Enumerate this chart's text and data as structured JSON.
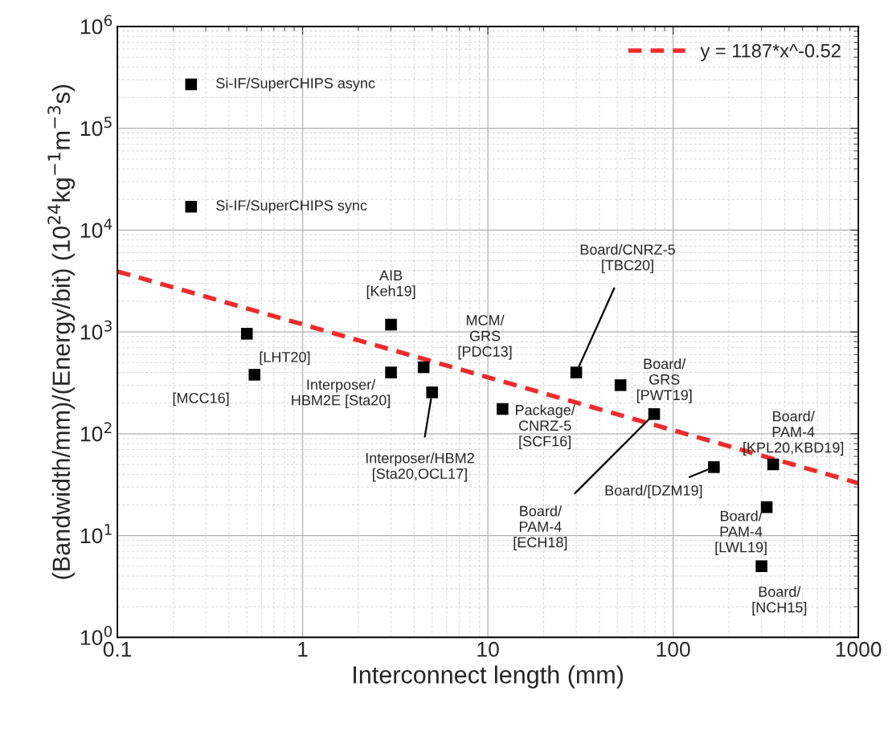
{
  "chart_data": {
    "type": "scatter",
    "xlabel": "Interconnect length (mm)",
    "ylabel": "(Bandwidth/mm)/(Energy/bit) (10$^{24}$kg$^{−1}$m$^{−3}$s)",
    "log": "xy",
    "xlim": [
      0.1,
      1000
    ],
    "ylim": [
      1,
      1000000
    ],
    "xticks": [
      0.1,
      1,
      10,
      100,
      1000
    ],
    "yticks": [
      {
        "value": 1,
        "label": "10$^{0}$"
      },
      {
        "value": 10,
        "label": "10$^{1}$"
      },
      {
        "value": 100,
        "label": "10$^{2}$"
      },
      {
        "value": 1000,
        "label": "10$^{3}$"
      },
      {
        "value": 10000,
        "label": "10$^{4}$"
      },
      {
        "value": 100000,
        "label": "10$^{5}$"
      },
      {
        "value": 1000000,
        "label": "10$^{6}$"
      }
    ],
    "grid": true,
    "legend": "top right",
    "series": [
      {
        "color": "#000000",
        "marker": "square",
        "x": [
          0.25,
          0.25,
          0.5,
          0.55,
          3,
          3,
          4.5,
          5,
          12,
          30,
          52,
          79,
          166,
          347,
          320,
          300
        ],
        "values": [
          270000,
          17000,
          960,
          380,
          1180,
          400,
          450,
          255,
          175,
          400,
          300,
          156,
          47,
          50,
          19,
          5
        ]
      },
      {
        "type": "line",
        "name": "y = 1187*x^-0.52",
        "color": "#ee2c2c",
        "marker": "none",
        "line_style": "dashed",
        "x": [
          0.1,
          1000
        ],
        "values": [
          3930,
          32.7
        ]
      }
    ],
    "annotations": [
      {
        "text": "Si-IF/SuperCHIPS async",
        "x": 0.25,
        "y": 270000
      },
      {
        "text": "Si-IF/SuperCHIPS sync",
        "x": 0.25,
        "y": 17000
      },
      {
        "text": "[LHT20]",
        "x": 0.5,
        "y": 960
      },
      {
        "text": "[MCC16]",
        "x": 0.55,
        "y": 380
      },
      {
        "text": "AIB\n[Keh19]",
        "x": 3,
        "y": 1180
      },
      {
        "text": "Interposer/\nHBM2E [Sta20]",
        "x": 3,
        "y": 400
      },
      {
        "text": "MCM/\nGRS\n[PDC13]",
        "x": 4.5,
        "y": 450
      },
      {
        "text": "Interposer/HBM2\n[Sta20,OCL17]",
        "x": 5,
        "y": 255
      },
      {
        "text": "Package/\nCNRZ-5\n[SCF16]",
        "x": 12,
        "y": 175
      },
      {
        "text": "Board/CNRZ-5\n[TBC20]",
        "x": 30,
        "y": 400
      },
      {
        "text": "Board/\nGRS\n[PWT19]",
        "x": 52,
        "y": 300
      },
      {
        "text": "Board/\nPAM-4\n[ECH18]",
        "x": 79,
        "y": 156
      },
      {
        "text": "Board/[DZM19]",
        "x": 166,
        "y": 47
      },
      {
        "text": "Board/\nPAM-4\n[KPL20,KBD19]",
        "x": 347,
        "y": 50
      },
      {
        "text": "Board/\nPAM-4\n[LWL19]",
        "x": 320,
        "y": 19
      },
      {
        "text": "Board/\n[NCH15]",
        "x": 300,
        "y": 5
      }
    ]
  }
}
